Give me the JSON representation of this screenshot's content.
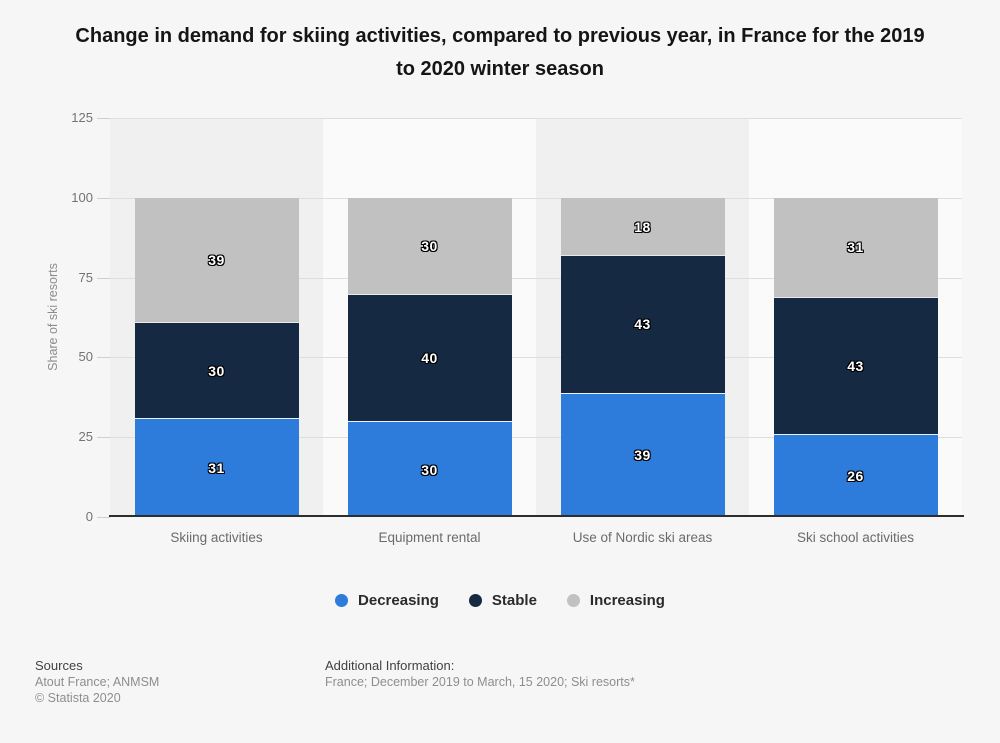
{
  "chart_data": {
    "type": "bar",
    "stacked": true,
    "title": "Change in demand for skiing activities, compared to previous year, in France for the 2019 to 2020 winter season",
    "categories": [
      "Skiing activities",
      "Equipment rental",
      "Use of Nordic ski areas",
      "Ski school activities"
    ],
    "series": [
      {
        "name": "Decreasing",
        "color": "#2d7bdb",
        "values": [
          31,
          30,
          39,
          26
        ]
      },
      {
        "name": "Stable",
        "color": "#152a42",
        "values": [
          30,
          40,
          43,
          43
        ]
      },
      {
        "name": "Increasing",
        "color": "#c1c1c1",
        "values": [
          39,
          30,
          18,
          31
        ]
      }
    ],
    "xlabel": "",
    "ylabel": "Share of ski resorts",
    "yticks": [
      0,
      25,
      50,
      75,
      100,
      125
    ],
    "ylim": [
      0,
      125
    ],
    "grid": true,
    "legend_position": "bottom"
  },
  "footer": {
    "sources_label": "Sources",
    "sources_line1": "Atout France; ANMSM",
    "copyright": "© Statista 2020",
    "additional_label": "Additional Information:",
    "additional_text": "France; December 2019 to March, 15 2020; Ski resorts*"
  },
  "style": {
    "band_dark": "#f0f0f1",
    "band_light": "#fafafa",
    "gridline_color": "#dedede",
    "baseline_color": "#2d2d2d",
    "background": "#f6f6f6"
  }
}
